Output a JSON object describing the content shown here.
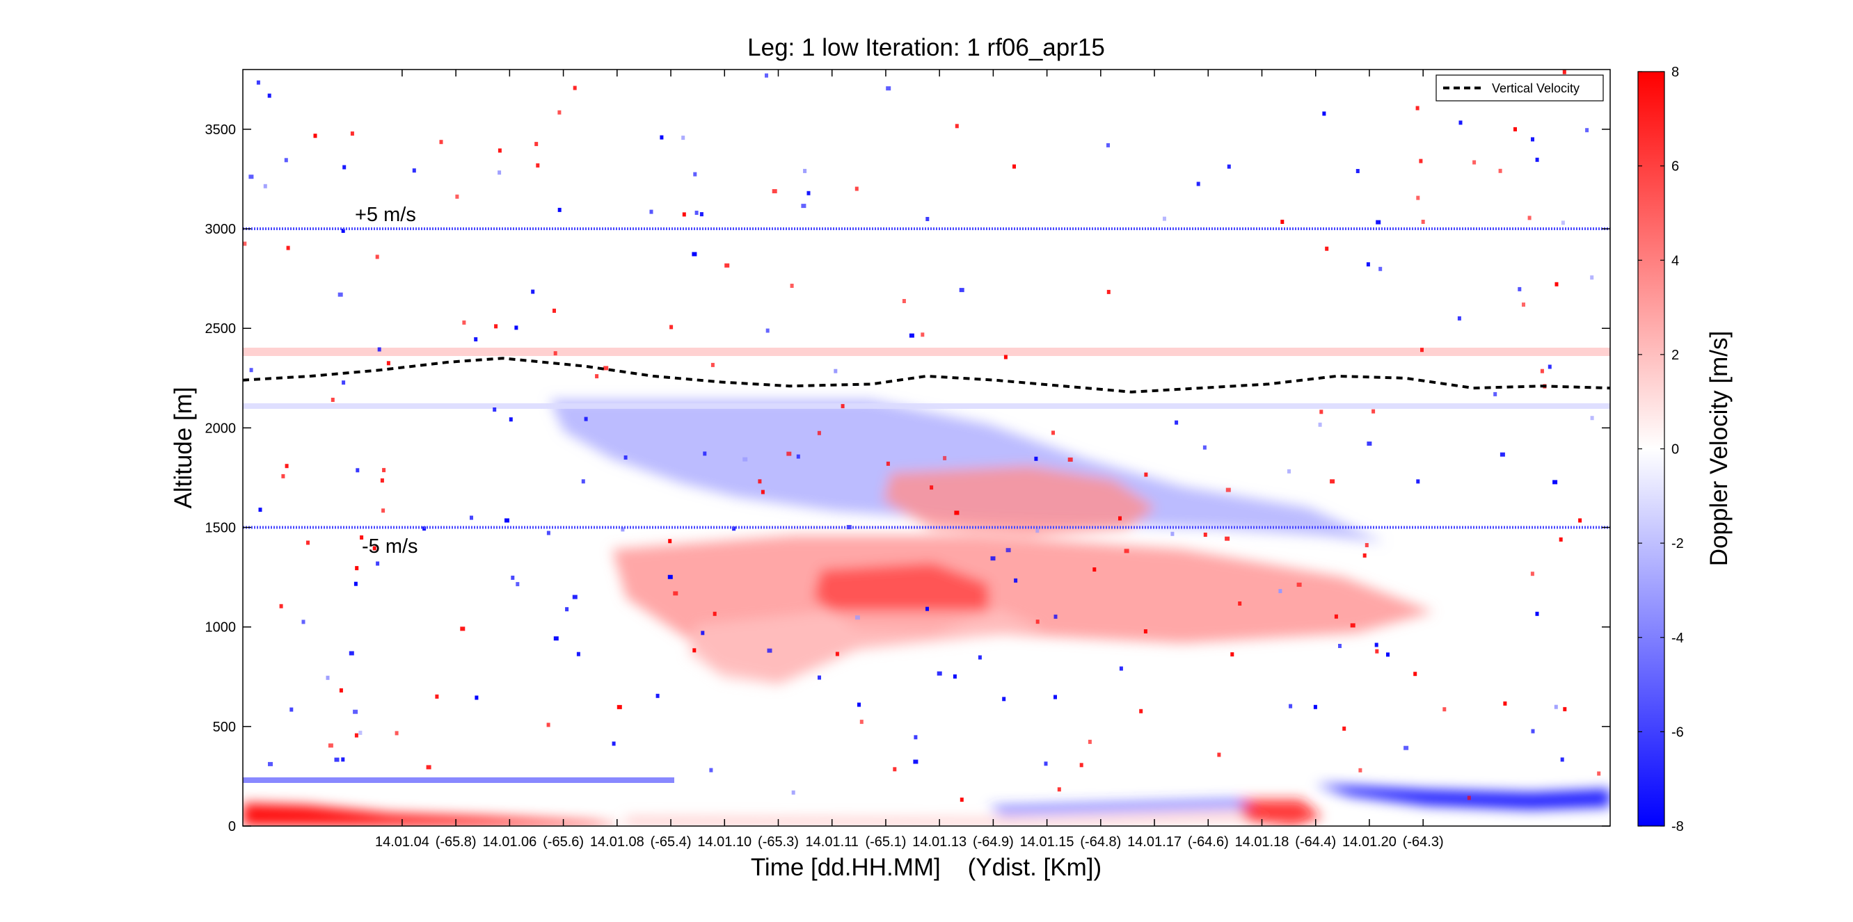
{
  "chart_data": {
    "type": "heatmap",
    "title": "Leg: 1 low Iteration: 1  rf06_apr15",
    "xlabel": "Time [dd.HH.MM]    (Ydist. [Km])",
    "ylabel": "Altitude [m]",
    "colorbar_label": "Doppler Velocity [m/s]",
    "colorbar_range": [
      -8,
      8
    ],
    "colorbar_ticks": [
      "8",
      "6",
      "4",
      "2",
      "0",
      "-2",
      "-4",
      "-6",
      "-8"
    ],
    "colormap": {
      "negative": "#0000ff",
      "zero": "#ffffff",
      "positive": "#ff0000"
    },
    "ylim": [
      0,
      3800
    ],
    "yticks": [
      "0",
      "500",
      "1000",
      "1500",
      "2000",
      "2500",
      "3000",
      "3500"
    ],
    "xtick_labels": [
      "14.01.04",
      "(-65.8)",
      "14.01.06",
      "(-65.6)",
      "14.01.08",
      "(-65.4)",
      "14.01.10",
      "(-65.3)",
      "14.01.11",
      "(-65.1)",
      "14.01.13",
      "(-64.9)",
      "14.01.15",
      "(-64.8)",
      "14.01.17",
      "(-64.6)",
      "14.01.18",
      "(-64.4)",
      "14.01.20",
      "(-64.3)"
    ],
    "legend": {
      "label": "Vertical Velocity",
      "placement": "top-right",
      "style": "dashed",
      "color": "#000000"
    },
    "reference_lines": [
      {
        "label": "+5 m/s",
        "altitude": 3000,
        "color": "#4a4aff"
      },
      {
        "label": "-5 m/s",
        "altitude": 1500,
        "color": "#4a4aff"
      }
    ],
    "vertical_velocity_line": {
      "x": [
        0,
        0.05,
        0.1,
        0.15,
        0.19,
        0.25,
        0.3,
        0.35,
        0.4,
        0.46,
        0.5,
        0.55,
        0.6,
        0.65,
        0.7,
        0.75,
        0.8,
        0.85,
        0.9,
        0.95,
        1.0
      ],
      "altitude": [
        2240,
        2260,
        2290,
        2330,
        2350,
        2310,
        2260,
        2230,
        2210,
        2220,
        2260,
        2240,
        2210,
        2180,
        2200,
        2220,
        2260,
        2250,
        2200,
        2210,
        2200
      ]
    },
    "field_regions": [
      {
        "sign": "negative",
        "note": "blue echo 1650-2150 m, left-center"
      },
      {
        "sign": "positive",
        "note": "red echo 1500-1900 m, center-right"
      },
      {
        "sign": "positive",
        "note": "red echo 700-1500 m, center"
      },
      {
        "sign": "positive",
        "note": "strong red near surface, left"
      },
      {
        "sign": "negative",
        "note": "strong blue near surface, right"
      }
    ]
  }
}
